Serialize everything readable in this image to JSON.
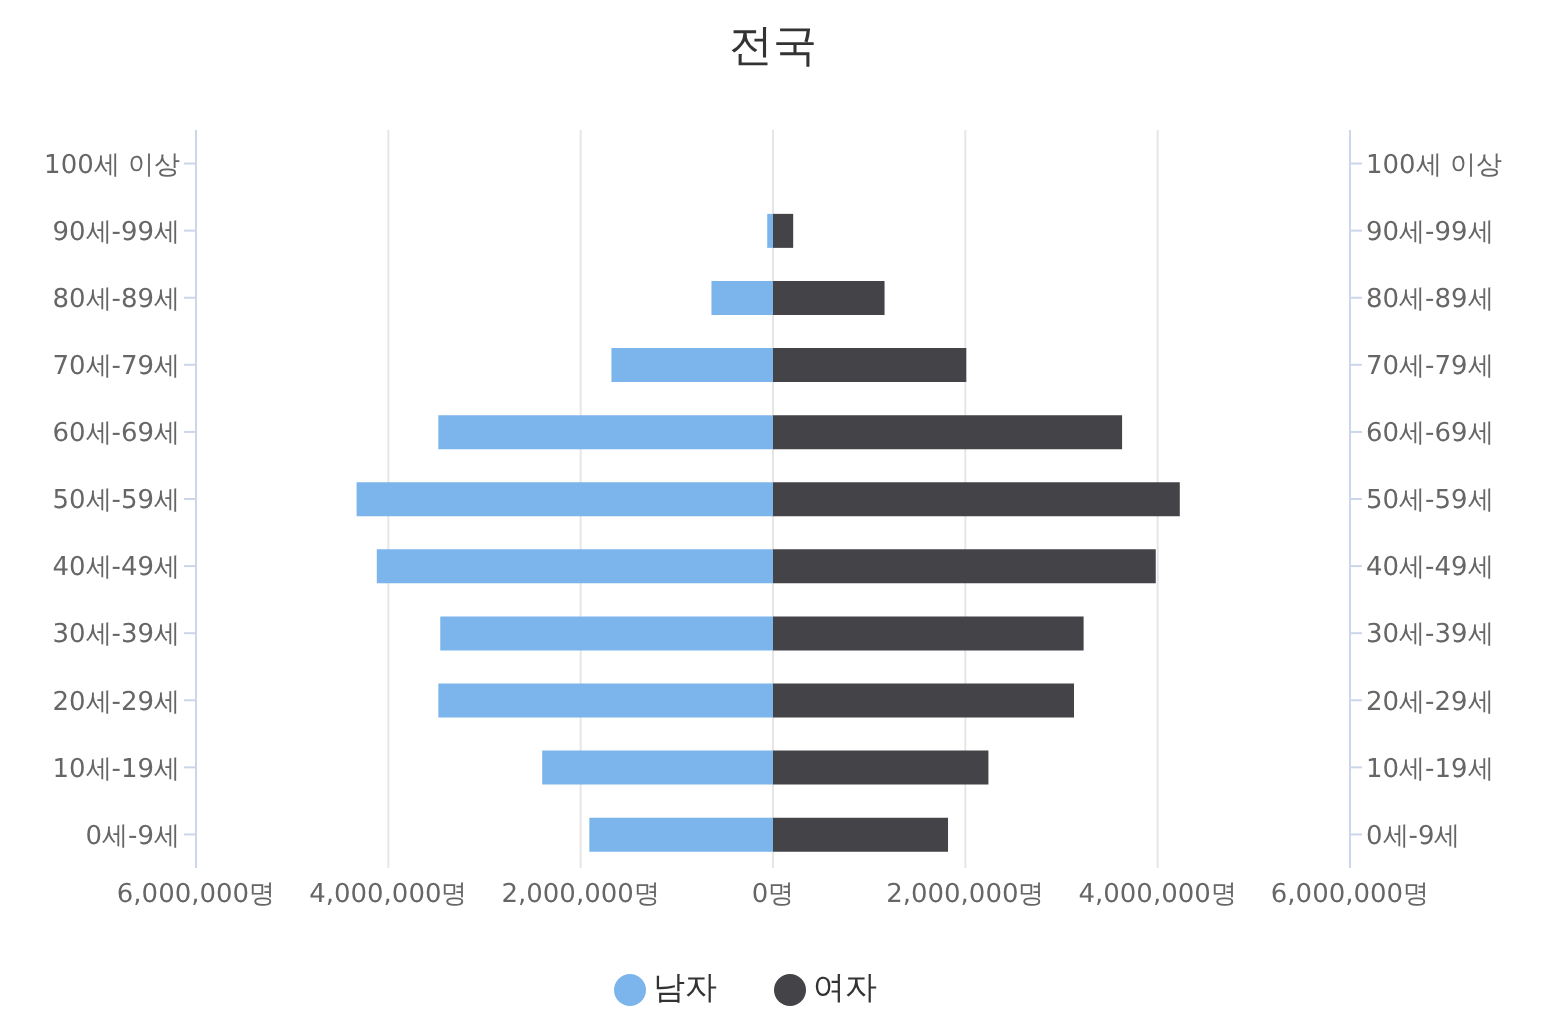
{
  "chart_data": {
    "type": "bar",
    "orientation": "horizontal",
    "stacked": true,
    "title": "전국",
    "categories": [
      "100세 이상",
      "90세-99세",
      "80세-89세",
      "70세-79세",
      "60세-69세",
      "50세-59세",
      "40세-49세",
      "30세-39세",
      "20세-29세",
      "10세-19세",
      "0세-9세"
    ],
    "series": [
      {
        "name": "남자",
        "color": "#7cb5ec",
        "values": [
          0,
          -60000,
          -640000,
          -1680000,
          -3480000,
          -4330000,
          -4120000,
          -3460000,
          -3480000,
          -2400000,
          -1910000
        ]
      },
      {
        "name": "여자",
        "color": "#434348",
        "values": [
          0,
          210000,
          1160000,
          2010000,
          3630000,
          4230000,
          3980000,
          3230000,
          3130000,
          2240000,
          1820000
        ]
      }
    ],
    "xlim": [
      -6000000,
      6000000
    ],
    "xticks": [
      {
        "value": -6000000,
        "label": "6,000,000명"
      },
      {
        "value": -4000000,
        "label": "4,000,000명"
      },
      {
        "value": -2000000,
        "label": "2,000,000명"
      },
      {
        "value": 0,
        "label": "0명"
      },
      {
        "value": 2000000,
        "label": "2,000,000명"
      },
      {
        "value": 4000000,
        "label": "4,000,000명"
      },
      {
        "value": 6000000,
        "label": "6,000,000명"
      }
    ],
    "grid": "x",
    "legend": "bottom"
  }
}
